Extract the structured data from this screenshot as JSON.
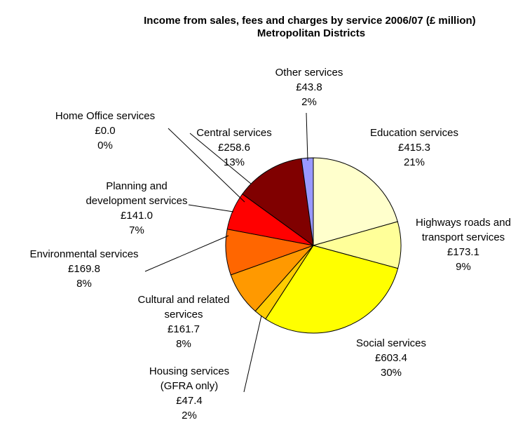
{
  "chart_data": {
    "type": "pie",
    "title_lines": [
      "Income from sales, fees and charges by service 2006/07 (£ million)",
      "Metropolitan Districts"
    ],
    "start_angle_deg": 0,
    "direction": "clockwise",
    "slices": [
      {
        "key": "education",
        "label_lines": [
          "Education services"
        ],
        "value_text": "£415.3",
        "pct_text": "21%",
        "value": 415.3,
        "color": "#FFFFCC"
      },
      {
        "key": "highways",
        "label_lines": [
          "Highways roads and",
          "transport services"
        ],
        "value_text": "£173.1",
        "pct_text": "9%",
        "value": 173.1,
        "color": "#FFFF99"
      },
      {
        "key": "social",
        "label_lines": [
          "Social services"
        ],
        "value_text": "£603.4",
        "pct_text": "30%",
        "value": 603.4,
        "color": "#FFFF00"
      },
      {
        "key": "housing",
        "label_lines": [
          "Housing services",
          "(GFRA only)"
        ],
        "value_text": "£47.4",
        "pct_text": "2%",
        "value": 47.4,
        "color": "#FFCC00"
      },
      {
        "key": "cultural",
        "label_lines": [
          "Cultural and related",
          "services"
        ],
        "value_text": "£161.7",
        "pct_text": "8%",
        "value": 161.7,
        "color": "#FF9900"
      },
      {
        "key": "environmental",
        "label_lines": [
          "Environmental services"
        ],
        "value_text": "£169.8",
        "pct_text": "8%",
        "value": 169.8,
        "color": "#FF6600"
      },
      {
        "key": "planning",
        "label_lines": [
          "Planning and",
          "development services"
        ],
        "value_text": "£141.0",
        "pct_text": "7%",
        "value": 141.0,
        "color": "#FF0000"
      },
      {
        "key": "homeoffice",
        "label_lines": [
          "Home Office services"
        ],
        "value_text": "£0.0",
        "pct_text": "0%",
        "value": 0.0,
        "color": "#CC0000"
      },
      {
        "key": "central",
        "label_lines": [
          "Central services"
        ],
        "value_text": "£258.6",
        "pct_text": "13%",
        "value": 258.6,
        "color": "#800000"
      },
      {
        "key": "other",
        "label_lines": [
          "Other services"
        ],
        "value_text": "£43.8",
        "pct_text": "2%",
        "value": 43.8,
        "color": "#9999FF"
      }
    ]
  }
}
